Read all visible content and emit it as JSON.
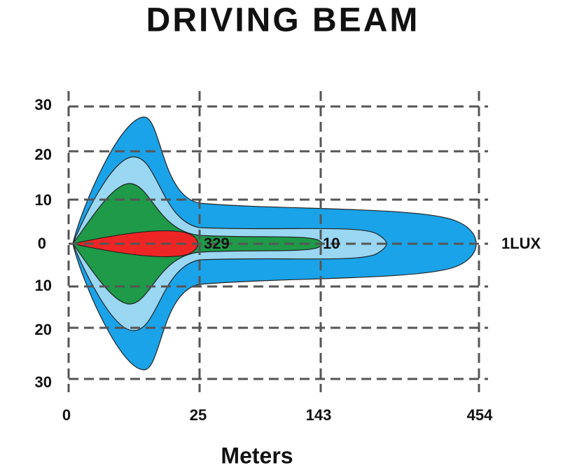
{
  "title": "DRIVING BEAM",
  "y_labels": [
    "30",
    "20",
    "10",
    "0",
    "10",
    "20",
    "30"
  ],
  "x_labels": [
    "0",
    "25",
    "143",
    "454"
  ],
  "x_axis_title": "Meters",
  "annotations": [
    "329",
    "10",
    "1LUX"
  ]
}
